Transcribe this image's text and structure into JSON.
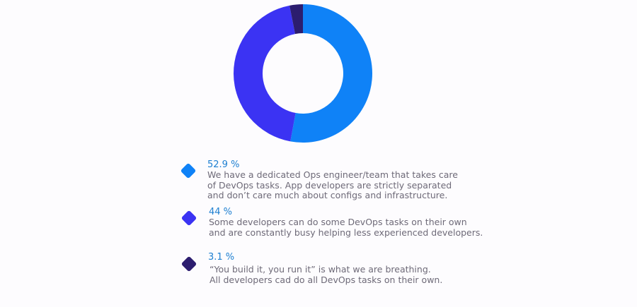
{
  "chart_data": {
    "type": "pie",
    "donut": true,
    "slices": [
      {
        "value": 52.9,
        "label": "52.9 %",
        "color": "#0f82f7",
        "description": [
          "We have a dedicated Ops engineer/team that takes care",
          "of DevOps tasks. App developers are strictly separated",
          "and don’t care much about configs and infrastructure."
        ]
      },
      {
        "value": 44,
        "label": "44 %",
        "color": "#3b33f3",
        "description": [
          "Some developers can do some DevOps tasks on their own",
          "and are constantly busy helping less experienced developers."
        ]
      },
      {
        "value": 3.1,
        "label": "3.1 %",
        "color": "#2c1d6f",
        "description": [
          "“You build it, you run it” is what we are breathing.",
          "All developers cad do all DevOps tasks on their own."
        ]
      }
    ],
    "label_color": "#1d7fd1"
  }
}
